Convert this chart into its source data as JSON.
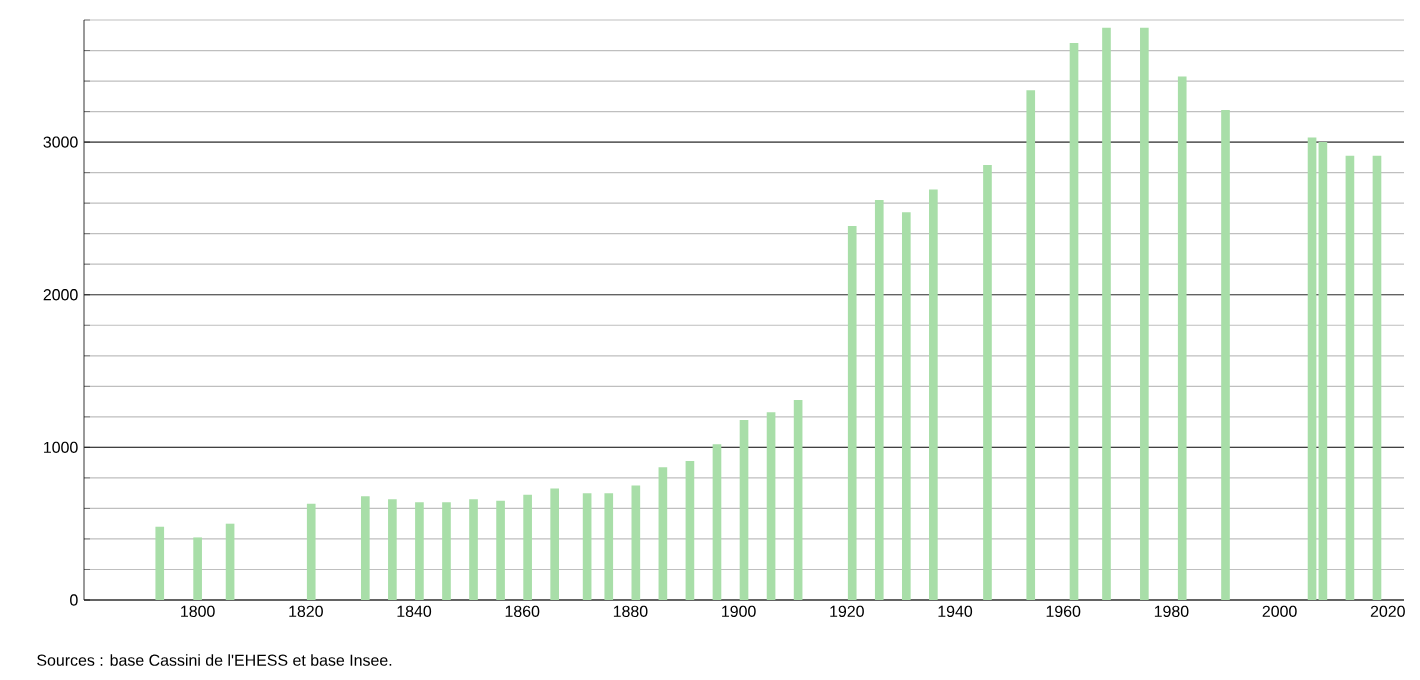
{
  "chart_data": {
    "type": "bar",
    "x": [
      1793,
      1800,
      1806,
      1821,
      1831,
      1836,
      1841,
      1846,
      1851,
      1856,
      1861,
      1866,
      1872,
      1876,
      1881,
      1886,
      1891,
      1896,
      1901,
      1906,
      1911,
      1921,
      1926,
      1931,
      1936,
      1946,
      1954,
      1962,
      1968,
      1975,
      1982,
      1990,
      2006,
      2008,
      2013,
      2018
    ],
    "values": [
      480,
      410,
      500,
      630,
      680,
      660,
      640,
      640,
      660,
      650,
      690,
      730,
      700,
      700,
      750,
      870,
      910,
      1020,
      1180,
      1230,
      1310,
      2450,
      2620,
      2540,
      2690,
      2850,
      3340,
      3650,
      3750,
      3750,
      3430,
      3210,
      3030,
      3000,
      2910,
      2910
    ],
    "color": "#a8dea8",
    "xlim": [
      1779,
      2023
    ],
    "xticks": [
      1800,
      1820,
      1840,
      1860,
      1880,
      1900,
      1920,
      1940,
      1960,
      1980,
      2000,
      2020
    ],
    "ylim": [
      0,
      3800
    ],
    "yticks": [
      0,
      {
        "value": 200,
        "label": null
      },
      {
        "value": 400,
        "label": null
      },
      {
        "value": 600,
        "label": null
      },
      {
        "value": 800,
        "label": null
      },
      1000,
      {
        "value": 1200,
        "label": null
      },
      {
        "value": 1400,
        "label": null
      },
      {
        "value": 1600,
        "label": null
      },
      {
        "value": 1800,
        "label": null
      },
      2000,
      {
        "value": 2200,
        "label": null
      },
      {
        "value": 2400,
        "label": null
      },
      {
        "value": 2600,
        "label": null
      },
      {
        "value": 2800,
        "label": null
      },
      3000,
      {
        "value": 3200,
        "label": null
      },
      {
        "value": 3400,
        "label": null
      },
      {
        "value": 3600,
        "label": null
      },
      {
        "value": 3800,
        "label": null
      }
    ],
    "grid": "y",
    "annotations": [
      "Sources : base Cassini de l'EHESS et base Insee."
    ]
  }
}
